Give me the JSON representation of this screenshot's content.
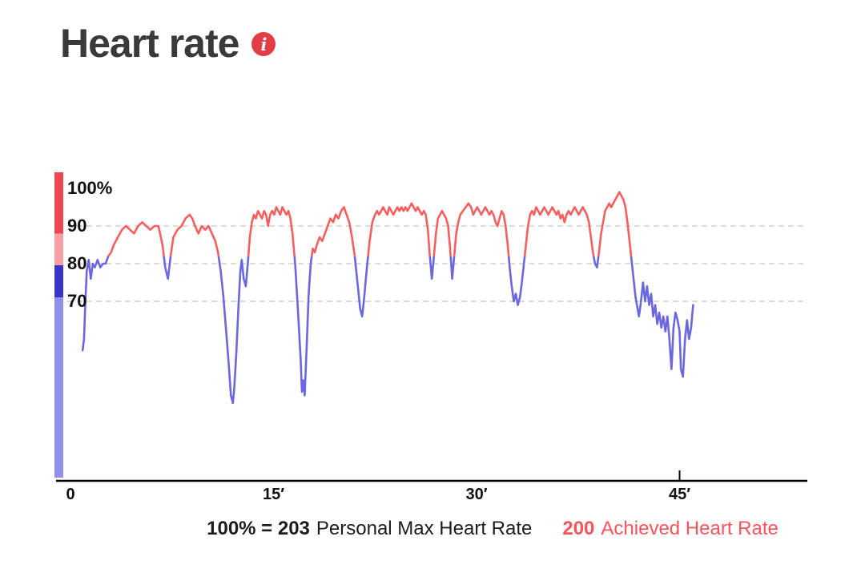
{
  "header": {
    "title": "Heart rate",
    "info_glyph": "i",
    "info_color": "#e23c46"
  },
  "chart_data": {
    "type": "line",
    "title": "Heart rate",
    "x_unit": "minutes",
    "y_unit": "percent of personal max heart rate",
    "xlim": [
      0,
      54.5
    ],
    "ylim": [
      23.5,
      104.5
    ],
    "xticks": [
      {
        "value": 0,
        "label": "0",
        "tick": false
      },
      {
        "value": 15,
        "label": "15′",
        "tick": false
      },
      {
        "value": 30,
        "label": "30′",
        "tick": false
      },
      {
        "value": 45,
        "label": "45′",
        "tick": true
      }
    ],
    "yticks": [
      {
        "value": 100,
        "label": "100%"
      },
      {
        "value": 90,
        "label": "90"
      },
      {
        "value": 80,
        "label": "80"
      },
      {
        "value": 70,
        "label": "70"
      }
    ],
    "gridlines": [
      90,
      80,
      70
    ],
    "grid_style": "dashed",
    "legend_position": "bottom",
    "threshold_percent": 82,
    "colors": {
      "above_threshold": "#f75f5e",
      "below_threshold": "#6a67e0",
      "axis": "#000000",
      "grid": "#d0d0d0"
    },
    "zone_bar": [
      {
        "from": 104.5,
        "to": 88,
        "color": "#ee4653"
      },
      {
        "from": 88,
        "to": 79.5,
        "color": "#f7a0a3"
      },
      {
        "from": 79.5,
        "to": 71,
        "color": "#3a35c9"
      },
      {
        "from": 71,
        "to": 23.5,
        "color": "#928fe9"
      }
    ],
    "series": [
      {
        "name": "heart-rate-percent-of-max",
        "points": [
          [
            0.9,
            57
          ],
          [
            1.0,
            60
          ],
          [
            1.1,
            70
          ],
          [
            1.2,
            78
          ],
          [
            1.35,
            81
          ],
          [
            1.5,
            76
          ],
          [
            1.65,
            80
          ],
          [
            1.8,
            79
          ],
          [
            2.0,
            81
          ],
          [
            2.2,
            79
          ],
          [
            2.4,
            80
          ],
          [
            2.6,
            80
          ],
          [
            2.8,
            82
          ],
          [
            3.0,
            83
          ],
          [
            3.2,
            85
          ],
          [
            3.5,
            87
          ],
          [
            3.8,
            89
          ],
          [
            4.1,
            90
          ],
          [
            4.4,
            89
          ],
          [
            4.7,
            88
          ],
          [
            5.0,
            90
          ],
          [
            5.3,
            91
          ],
          [
            5.6,
            90
          ],
          [
            5.9,
            89
          ],
          [
            6.2,
            90
          ],
          [
            6.5,
            90
          ],
          [
            6.8,
            85
          ],
          [
            7.0,
            79
          ],
          [
            7.2,
            76
          ],
          [
            7.4,
            82
          ],
          [
            7.6,
            87
          ],
          [
            7.9,
            89
          ],
          [
            8.2,
            90
          ],
          [
            8.5,
            92
          ],
          [
            8.8,
            93
          ],
          [
            9.0,
            92
          ],
          [
            9.2,
            90
          ],
          [
            9.45,
            88
          ],
          [
            9.7,
            90
          ],
          [
            9.95,
            89
          ],
          [
            10.2,
            90
          ],
          [
            10.45,
            88
          ],
          [
            10.7,
            86
          ],
          [
            10.9,
            83
          ],
          [
            11.1,
            78
          ],
          [
            11.3,
            71
          ],
          [
            11.5,
            62
          ],
          [
            11.7,
            53
          ],
          [
            11.85,
            45
          ],
          [
            12.0,
            43
          ],
          [
            12.1,
            47
          ],
          [
            12.25,
            56
          ],
          [
            12.4,
            68
          ],
          [
            12.55,
            78
          ],
          [
            12.65,
            81
          ],
          [
            12.8,
            76
          ],
          [
            12.95,
            74
          ],
          [
            13.1,
            80
          ],
          [
            13.25,
            87
          ],
          [
            13.4,
            91
          ],
          [
            13.55,
            93
          ],
          [
            13.7,
            92
          ],
          [
            13.85,
            94
          ],
          [
            14.0,
            93
          ],
          [
            14.15,
            92
          ],
          [
            14.3,
            94
          ],
          [
            14.45,
            93
          ],
          [
            14.6,
            90
          ],
          [
            14.75,
            93
          ],
          [
            14.9,
            94
          ],
          [
            15.05,
            93
          ],
          [
            15.2,
            95
          ],
          [
            15.35,
            94
          ],
          [
            15.5,
            93
          ],
          [
            15.65,
            95
          ],
          [
            15.8,
            94
          ],
          [
            15.95,
            93
          ],
          [
            16.1,
            94
          ],
          [
            16.25,
            92
          ],
          [
            16.4,
            88
          ],
          [
            16.6,
            80
          ],
          [
            16.8,
            68
          ],
          [
            17.0,
            55
          ],
          [
            17.1,
            46
          ],
          [
            17.2,
            49
          ],
          [
            17.3,
            45
          ],
          [
            17.45,
            58
          ],
          [
            17.6,
            72
          ],
          [
            17.75,
            80
          ],
          [
            17.9,
            84
          ],
          [
            18.05,
            83
          ],
          [
            18.2,
            85
          ],
          [
            18.4,
            87
          ],
          [
            18.6,
            86
          ],
          [
            18.8,
            88
          ],
          [
            19.0,
            90
          ],
          [
            19.2,
            92
          ],
          [
            19.4,
            91
          ],
          [
            19.6,
            93
          ],
          [
            19.8,
            92
          ],
          [
            20.0,
            94
          ],
          [
            20.2,
            95
          ],
          [
            20.4,
            93
          ],
          [
            20.6,
            91
          ],
          [
            20.8,
            87
          ],
          [
            21.0,
            82
          ],
          [
            21.2,
            75
          ],
          [
            21.4,
            68
          ],
          [
            21.55,
            66
          ],
          [
            21.7,
            71
          ],
          [
            21.9,
            79
          ],
          [
            22.1,
            86
          ],
          [
            22.3,
            91
          ],
          [
            22.5,
            93
          ],
          [
            22.65,
            94
          ],
          [
            22.8,
            93
          ],
          [
            22.95,
            94
          ],
          [
            23.1,
            95
          ],
          [
            23.25,
            94
          ],
          [
            23.4,
            93
          ],
          [
            23.55,
            95
          ],
          [
            23.7,
            94
          ],
          [
            23.85,
            93
          ],
          [
            24.0,
            94
          ],
          [
            24.15,
            95
          ],
          [
            24.3,
            94
          ],
          [
            24.45,
            95
          ],
          [
            24.6,
            94
          ],
          [
            24.75,
            95
          ],
          [
            24.9,
            94
          ],
          [
            25.05,
            95
          ],
          [
            25.2,
            96
          ],
          [
            25.35,
            95
          ],
          [
            25.5,
            94
          ],
          [
            25.65,
            95
          ],
          [
            25.8,
            94
          ],
          [
            25.95,
            93
          ],
          [
            26.1,
            94
          ],
          [
            26.25,
            93
          ],
          [
            26.4,
            89
          ],
          [
            26.55,
            82
          ],
          [
            26.7,
            76
          ],
          [
            26.85,
            82
          ],
          [
            27.0,
            88
          ],
          [
            27.15,
            92
          ],
          [
            27.3,
            93
          ],
          [
            27.45,
            94
          ],
          [
            27.6,
            93
          ],
          [
            27.75,
            92
          ],
          [
            27.9,
            90
          ],
          [
            28.05,
            84
          ],
          [
            28.2,
            76
          ],
          [
            28.35,
            82
          ],
          [
            28.5,
            88
          ],
          [
            28.65,
            91
          ],
          [
            28.8,
            93
          ],
          [
            29.0,
            94
          ],
          [
            29.2,
            95
          ],
          [
            29.4,
            96
          ],
          [
            29.6,
            95
          ],
          [
            29.75,
            93
          ],
          [
            29.9,
            94
          ],
          [
            30.05,
            95
          ],
          [
            30.2,
            94
          ],
          [
            30.35,
            93
          ],
          [
            30.5,
            94
          ],
          [
            30.65,
            95
          ],
          [
            30.8,
            94
          ],
          [
            30.95,
            93
          ],
          [
            31.1,
            94
          ],
          [
            31.25,
            93
          ],
          [
            31.4,
            91
          ],
          [
            31.55,
            90
          ],
          [
            31.7,
            92
          ],
          [
            31.85,
            94
          ],
          [
            32.0,
            93
          ],
          [
            32.15,
            90
          ],
          [
            32.3,
            85
          ],
          [
            32.45,
            79
          ],
          [
            32.6,
            74
          ],
          [
            32.75,
            70
          ],
          [
            32.9,
            72
          ],
          [
            33.05,
            69
          ],
          [
            33.2,
            71
          ],
          [
            33.35,
            75
          ],
          [
            33.5,
            80
          ],
          [
            33.65,
            85
          ],
          [
            33.8,
            90
          ],
          [
            33.95,
            93
          ],
          [
            34.1,
            94
          ],
          [
            34.25,
            93
          ],
          [
            34.4,
            95
          ],
          [
            34.55,
            94
          ],
          [
            34.7,
            93
          ],
          [
            34.85,
            94
          ],
          [
            35.0,
            95
          ],
          [
            35.15,
            94
          ],
          [
            35.3,
            93
          ],
          [
            35.45,
            94
          ],
          [
            35.6,
            95
          ],
          [
            35.75,
            94
          ],
          [
            35.9,
            93
          ],
          [
            36.05,
            94
          ],
          [
            36.2,
            92
          ],
          [
            36.35,
            93
          ],
          [
            36.5,
            91
          ],
          [
            36.65,
            93
          ],
          [
            36.8,
            94
          ],
          [
            36.95,
            93
          ],
          [
            37.1,
            94
          ],
          [
            37.25,
            95
          ],
          [
            37.4,
            94
          ],
          [
            37.55,
            93
          ],
          [
            37.7,
            94
          ],
          [
            37.85,
            95
          ],
          [
            38.0,
            94
          ],
          [
            38.15,
            93
          ],
          [
            38.3,
            91
          ],
          [
            38.45,
            87
          ],
          [
            38.6,
            83
          ],
          [
            38.75,
            80
          ],
          [
            38.9,
            79
          ],
          [
            39.05,
            83
          ],
          [
            39.2,
            88
          ],
          [
            39.35,
            91
          ],
          [
            39.5,
            94
          ],
          [
            39.65,
            95
          ],
          [
            39.8,
            96
          ],
          [
            39.95,
            95
          ],
          [
            40.1,
            96
          ],
          [
            40.25,
            97
          ],
          [
            40.4,
            98
          ],
          [
            40.55,
            99
          ],
          [
            40.7,
            98
          ],
          [
            40.85,
            97
          ],
          [
            41.0,
            95
          ],
          [
            41.15,
            91
          ],
          [
            41.3,
            86
          ],
          [
            41.45,
            81
          ],
          [
            41.6,
            76
          ],
          [
            41.75,
            71
          ],
          [
            41.9,
            68
          ],
          [
            42.0,
            66
          ],
          [
            42.15,
            70
          ],
          [
            42.3,
            75
          ],
          [
            42.45,
            70
          ],
          [
            42.6,
            74
          ],
          [
            42.75,
            69
          ],
          [
            42.9,
            72
          ],
          [
            43.05,
            66
          ],
          [
            43.2,
            69
          ],
          [
            43.35,
            64
          ],
          [
            43.5,
            67
          ],
          [
            43.65,
            63
          ],
          [
            43.8,
            66
          ],
          [
            43.95,
            62
          ],
          [
            44.1,
            66
          ],
          [
            44.25,
            60
          ],
          [
            44.4,
            52
          ],
          [
            44.55,
            63
          ],
          [
            44.7,
            67
          ],
          [
            44.85,
            65
          ],
          [
            45.0,
            62
          ],
          [
            45.1,
            52
          ],
          [
            45.25,
            50
          ],
          [
            45.4,
            60
          ],
          [
            45.55,
            65
          ],
          [
            45.7,
            60
          ],
          [
            45.85,
            63
          ],
          [
            46.0,
            69
          ]
        ]
      }
    ]
  },
  "footer": {
    "max_bold": "100% = 203",
    "max_label": "Personal Max Heart Rate",
    "achieved_bold": "200",
    "achieved_label": "Achieved Heart Rate",
    "achieved_color": "#f9545c"
  }
}
